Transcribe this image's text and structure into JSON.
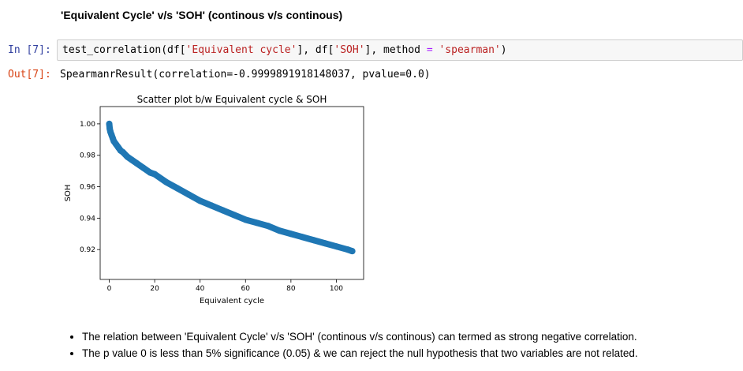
{
  "markdown": {
    "heading": "'Equivalent Cycle' v/s 'SOH' (continous v/s continous)",
    "bullets": [
      "The relation between 'Equivalent Cycle' v/s 'SOH' (continous v/s continous) can termed as strong negative correlation.",
      "The p value 0 is less than 5% significance (0.05) & we can reject the null hypothesis that two variables are not related."
    ]
  },
  "cell": {
    "in_prompt": "In [7]:",
    "out_prompt": "Out[7]:",
    "code": {
      "fn": "test_correlation(df[",
      "arg1": "'Equivalent cycle'",
      "mid1": "], df[",
      "arg2": "'SOH'",
      "mid2": "], method ",
      "eq": "=",
      "sp": " ",
      "arg3": "'spearman'",
      "end": ")"
    },
    "output": "SpearmanrResult(correlation=-0.9999891918148037, pvalue=0.0)"
  },
  "colors": {
    "marker": "#1f77b4",
    "in_prompt": "#303f9f",
    "out_prompt": "#d84315",
    "string": "#ba2121",
    "operator": "#aa22ff"
  },
  "chart_data": {
    "type": "scatter",
    "title": "Scatter plot b/w Equivalent cycle & SOH",
    "xlabel": "Equivalent cycle",
    "ylabel": "SOH",
    "xlim": [
      -4,
      112
    ],
    "ylim": [
      0.901,
      1.011
    ],
    "xticks": [
      0,
      20,
      40,
      60,
      80,
      100
    ],
    "yticks": [
      0.92,
      0.94,
      0.96,
      0.98,
      1.0
    ],
    "xtick_labels": [
      "0",
      "20",
      "40",
      "60",
      "80",
      "100"
    ],
    "ytick_labels": [
      "0.92",
      "0.94",
      "0.96",
      "0.98",
      "1.00"
    ],
    "grid": false,
    "series": [
      {
        "x": [
          0,
          0.2,
          0.5,
          1,
          1.5,
          2,
          3,
          4,
          5,
          6,
          8,
          10,
          12,
          15,
          18,
          20,
          25,
          30,
          35,
          40,
          45,
          50,
          55,
          60,
          65,
          70,
          75,
          80,
          85,
          90,
          95,
          100,
          105,
          107
        ],
        "y": [
          1.0,
          0.997,
          0.995,
          0.993,
          0.991,
          0.989,
          0.987,
          0.985,
          0.983,
          0.982,
          0.979,
          0.977,
          0.975,
          0.972,
          0.969,
          0.968,
          0.963,
          0.959,
          0.955,
          0.951,
          0.948,
          0.945,
          0.942,
          0.939,
          0.937,
          0.935,
          0.932,
          0.93,
          0.928,
          0.926,
          0.924,
          0.922,
          0.92,
          0.919
        ]
      }
    ]
  }
}
